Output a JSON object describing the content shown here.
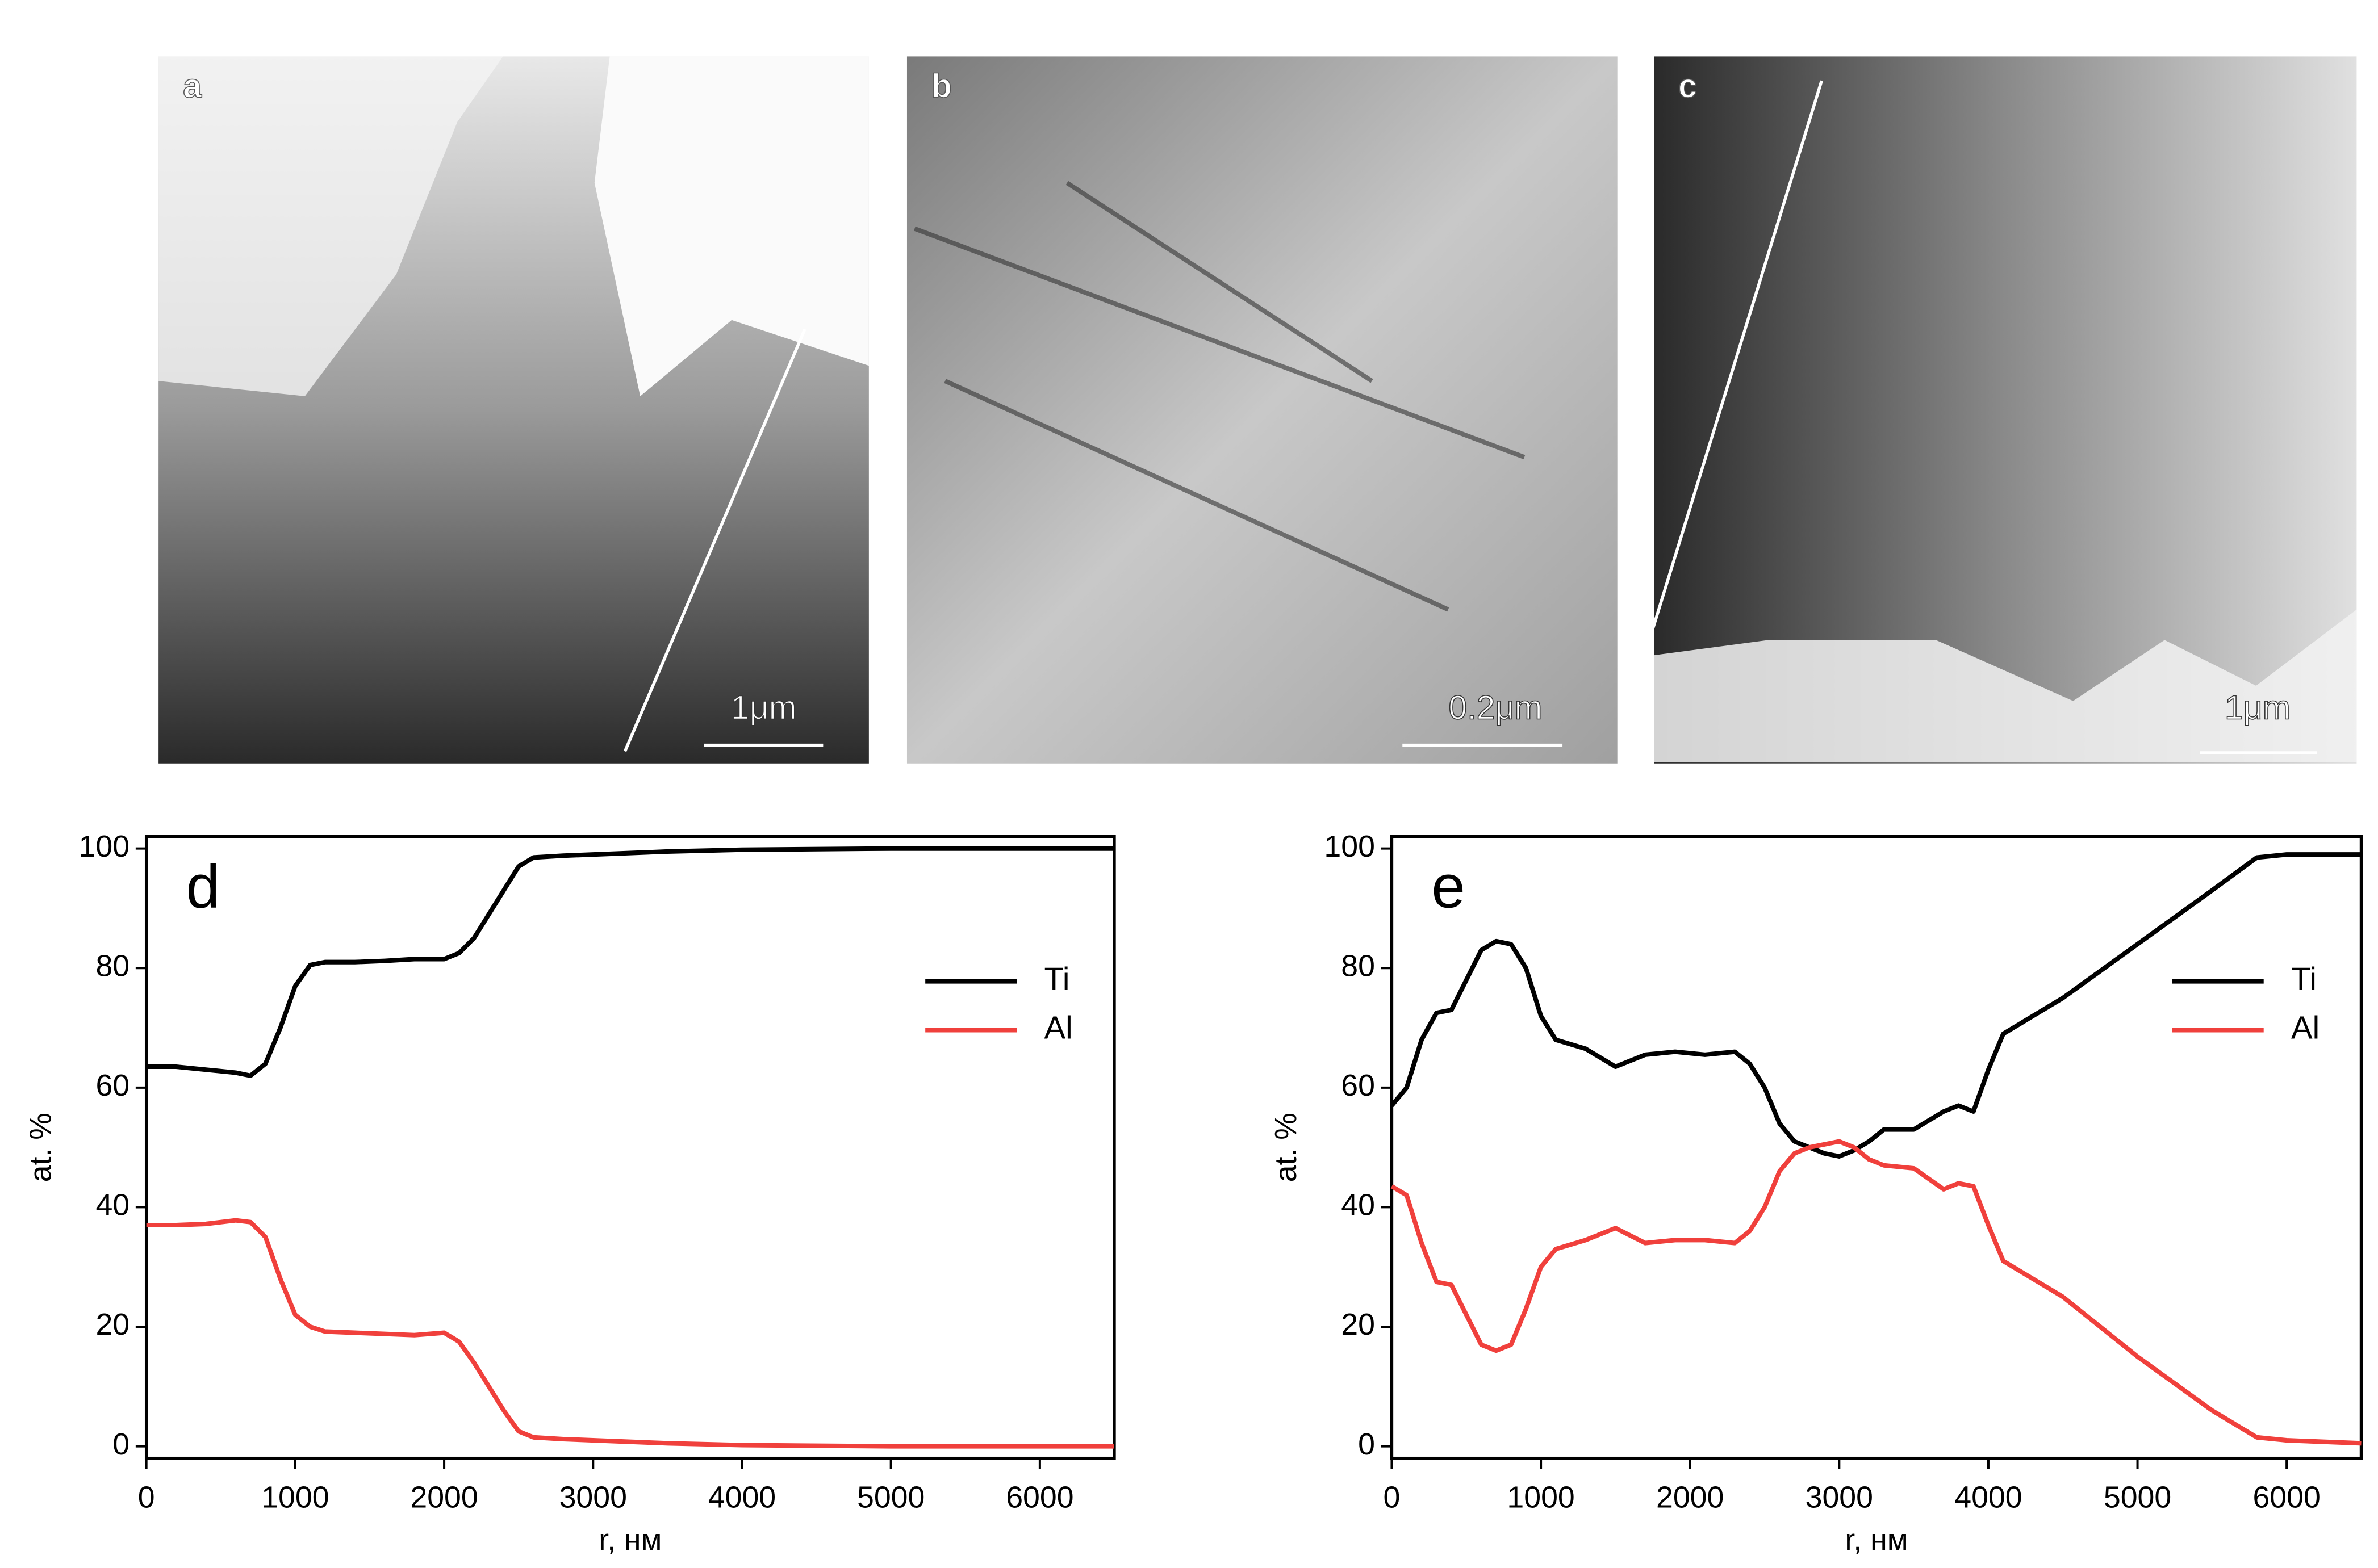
{
  "images": [
    {
      "label": "a",
      "scale_bar": "1μm"
    },
    {
      "label": "b",
      "scale_bar": "0.2μm"
    },
    {
      "label": "c",
      "scale_bar": "1μm"
    }
  ],
  "chart_data": [
    {
      "type": "line",
      "panel_label": "d",
      "xlabel": "r, нм",
      "ylabel": "at. %",
      "x": [
        0,
        200,
        400,
        600,
        700,
        800,
        900,
        1000,
        1100,
        1200,
        1400,
        1600,
        1800,
        2000,
        2100,
        2200,
        2300,
        2400,
        2500,
        2600,
        2800,
        3000,
        3500,
        4000,
        5000,
        6000,
        6500
      ],
      "series": [
        {
          "name": "Ti",
          "color": "#000000",
          "values": [
            63.5,
            63.5,
            63,
            62.5,
            62,
            64,
            70,
            77,
            80.5,
            81,
            81,
            81.2,
            81.5,
            81.5,
            82.5,
            85,
            89,
            93,
            97,
            98.5,
            98.8,
            99,
            99.5,
            99.8,
            100,
            100,
            100
          ]
        },
        {
          "name": "Al",
          "color": "#f0403c",
          "values": [
            37,
            37,
            37.2,
            37.8,
            37.5,
            35,
            28,
            22,
            20,
            19.2,
            19,
            18.8,
            18.6,
            19,
            17.5,
            14,
            10,
            6,
            2.5,
            1.5,
            1.2,
            1,
            0.5,
            0.2,
            0,
            0,
            0
          ]
        }
      ],
      "xlim": [
        0,
        6500
      ],
      "xticks": [
        0,
        1000,
        2000,
        3000,
        4000,
        5000,
        6000
      ],
      "ylim": [
        -2,
        102
      ],
      "yticks": [
        0,
        20,
        40,
        60,
        80,
        100
      ],
      "legend": "upper right"
    },
    {
      "type": "line",
      "panel_label": "e",
      "xlabel": "r, нм",
      "ylabel": "at. %",
      "x": [
        0,
        100,
        200,
        300,
        400,
        500,
        600,
        700,
        800,
        900,
        1000,
        1100,
        1300,
        1500,
        1700,
        1900,
        2100,
        2300,
        2400,
        2500,
        2600,
        2700,
        2800,
        2900,
        3000,
        3100,
        3200,
        3300,
        3500,
        3700,
        3800,
        3900,
        4000,
        4100,
        4300,
        4500,
        5000,
        5500,
        5800,
        6000,
        6500
      ],
      "series": [
        {
          "name": "Ti",
          "color": "#000000",
          "values": [
            57,
            60,
            68,
            72.5,
            73,
            78,
            83,
            84.5,
            84,
            80,
            72,
            68,
            66.5,
            63.5,
            65.5,
            66,
            65.5,
            66,
            64,
            60,
            54,
            51,
            50,
            49,
            48.5,
            49.5,
            51,
            53,
            53,
            56,
            57,
            56,
            63,
            69,
            72,
            75,
            84,
            93,
            98.5,
            99,
            99
          ]
        },
        {
          "name": "Al",
          "color": "#f0403c",
          "values": [
            43.5,
            42,
            34,
            27.5,
            27,
            22,
            17,
            16,
            17,
            23,
            30,
            33,
            34.5,
            36.5,
            34,
            34.5,
            34.5,
            34,
            36,
            40,
            46,
            49,
            50,
            50.5,
            51,
            50,
            48,
            47,
            46.5,
            43,
            44,
            43.5,
            37,
            31,
            28,
            25,
            15,
            6,
            1.5,
            1,
            0.5
          ]
        }
      ],
      "xlim": [
        0,
        6500
      ],
      "xticks": [
        0,
        1000,
        2000,
        3000,
        4000,
        5000,
        6000
      ],
      "ylim": [
        -2,
        102
      ],
      "yticks": [
        0,
        20,
        40,
        60,
        80,
        100
      ],
      "legend": "upper right"
    }
  ]
}
